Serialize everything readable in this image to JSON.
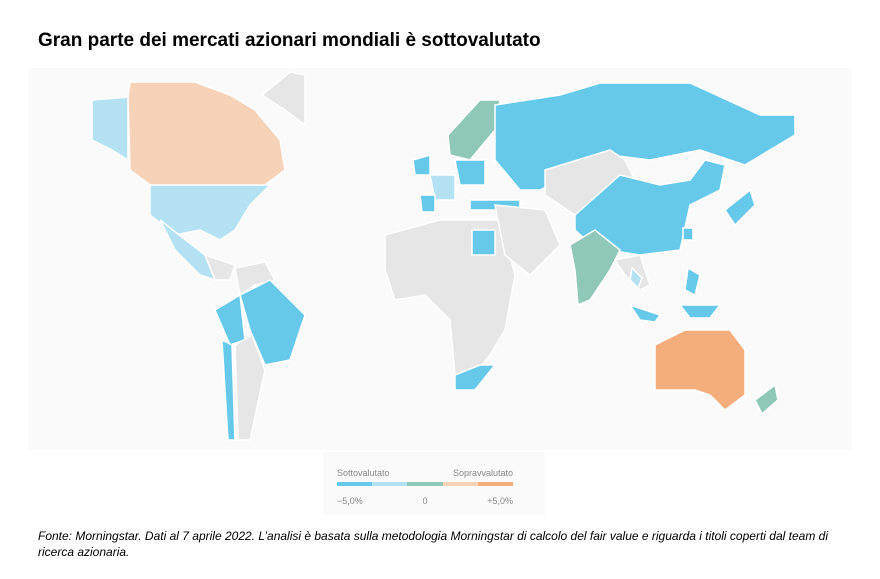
{
  "title": "Gran parte dei mercati azionari mondiali è sottovalutato",
  "legend": {
    "left_label": "Sottovalutato",
    "right_label": "Sopravvalutato",
    "ticks": [
      "−5,0%",
      "0",
      "+5,0%"
    ]
  },
  "source": "Fonte: Morningstar. Dati al 7 aprile 2022. L’analisi è basata sulla metodologia Morningstar di calcolo del fair value e riguarda i titoli coperti dal team di ricerca azionaria."
}
